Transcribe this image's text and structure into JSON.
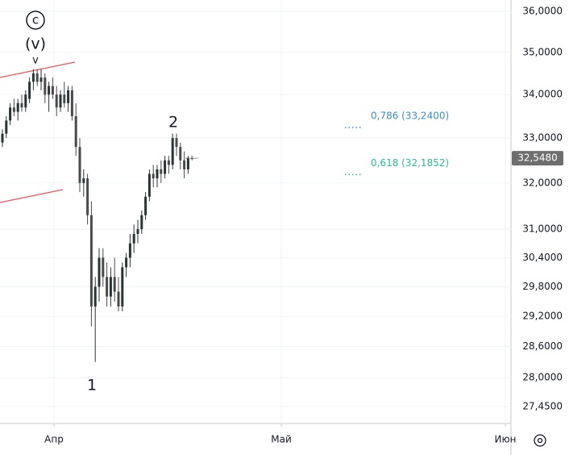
{
  "chart_data": {
    "type": "candlestick",
    "log_scale": true,
    "grid": true,
    "ylim": [
      27.13,
      36.28
    ],
    "yticks": [
      {
        "value": 36,
        "label": "36,0000"
      },
      {
        "value": 35,
        "label": "35,0000"
      },
      {
        "value": 34,
        "label": "34,0000"
      },
      {
        "value": 33,
        "label": "33,0000"
      },
      {
        "value": 32,
        "label": "32,0000"
      },
      {
        "value": 31,
        "label": "31,0000"
      },
      {
        "value": 30.4,
        "label": "30,4000"
      },
      {
        "value": 29.8,
        "label": "29,8000"
      },
      {
        "value": 29.2,
        "label": "29,2000"
      },
      {
        "value": 28.6,
        "label": "28,6000"
      },
      {
        "value": 28,
        "label": "28,0000"
      },
      {
        "value": 27.45,
        "label": "27,4500"
      }
    ],
    "x_labels": [
      "Апр",
      "Май",
      "Июн"
    ],
    "up_color": "#2a3434",
    "down_color": "#4a4a4a",
    "candles": [
      [
        32.9,
        33.2,
        32.8,
        33.1
      ],
      [
        33.1,
        33.5,
        33.0,
        33.4
      ],
      [
        33.4,
        33.8,
        33.3,
        33.7
      ],
      [
        33.7,
        33.9,
        33.5,
        33.6
      ],
      [
        33.6,
        33.9,
        33.4,
        33.8
      ],
      [
        33.8,
        34.0,
        33.6,
        33.7
      ],
      [
        33.7,
        34.1,
        33.6,
        34.0
      ],
      [
        33.9,
        34.4,
        33.8,
        34.3
      ],
      [
        34.3,
        34.6,
        34.1,
        34.5
      ],
      [
        34.5,
        34.6,
        34.2,
        34.3
      ],
      [
        34.3,
        34.6,
        34.1,
        34.4
      ],
      [
        34.4,
        34.5,
        33.8,
        34.0
      ],
      [
        34.0,
        34.3,
        33.6,
        34.2
      ],
      [
        34.2,
        34.4,
        33.9,
        34.0
      ],
      [
        34.0,
        34.2,
        33.5,
        33.7
      ],
      [
        33.7,
        34.1,
        33.6,
        34.0
      ],
      [
        34.0,
        34.3,
        33.7,
        33.8
      ],
      [
        33.8,
        34.2,
        33.6,
        34.1
      ],
      [
        34.1,
        34.2,
        33.4,
        33.5
      ],
      [
        33.5,
        33.8,
        32.6,
        32.8
      ],
      [
        32.8,
        33.0,
        31.8,
        32.0
      ],
      [
        32.0,
        32.3,
        31.7,
        32.1
      ],
      [
        32.1,
        32.2,
        31.1,
        31.3
      ],
      [
        31.3,
        31.6,
        29.0,
        29.4
      ],
      [
        29.4,
        30.0,
        28.3,
        29.8
      ],
      [
        29.8,
        30.6,
        29.5,
        30.4
      ],
      [
        30.4,
        30.6,
        29.8,
        30.0
      ],
      [
        30.0,
        30.3,
        29.4,
        29.6
      ],
      [
        29.6,
        30.2,
        29.4,
        30.0
      ],
      [
        30.0,
        30.4,
        29.5,
        29.7
      ],
      [
        29.7,
        30.0,
        29.3,
        29.4
      ],
      [
        29.4,
        30.3,
        29.3,
        30.2
      ],
      [
        30.2,
        30.5,
        30.0,
        30.4
      ],
      [
        30.4,
        30.9,
        30.2,
        30.7
      ],
      [
        30.7,
        31.1,
        30.5,
        30.9
      ],
      [
        30.9,
        31.2,
        30.7,
        31.0
      ],
      [
        31.0,
        31.4,
        30.9,
        31.3
      ],
      [
        31.3,
        31.8,
        31.2,
        31.7
      ],
      [
        31.7,
        32.3,
        31.6,
        32.2
      ],
      [
        32.2,
        32.4,
        31.9,
        32.1
      ],
      [
        32.1,
        32.4,
        31.9,
        32.3
      ],
      [
        32.3,
        32.5,
        32.0,
        32.2
      ],
      [
        32.2,
        32.6,
        32.1,
        32.5
      ],
      [
        32.5,
        32.6,
        32.2,
        32.4
      ],
      [
        32.4,
        33.1,
        32.3,
        33.0
      ],
      [
        33.0,
        33.1,
        32.6,
        32.8
      ],
      [
        32.8,
        32.9,
        32.3,
        32.5
      ],
      [
        32.5,
        32.7,
        32.1,
        32.3
      ],
      [
        32.3,
        32.6,
        32.2,
        32.55
      ],
      [
        32.55,
        32.6,
        32.5,
        32.548
      ]
    ],
    "last_price": {
      "value": 32.548,
      "label": "32,5480",
      "color": "#6e6e6e"
    },
    "fib_levels": [
      {
        "value": 33.24,
        "label": "0,786 (33,2400)",
        "color": "#3d8fc4"
      },
      {
        "value": 32.1852,
        "label": "0,618 (32,1852)",
        "color": "#2bbd94"
      }
    ],
    "wave_labels": {
      "c": "c",
      "v": "(v)",
      "arrow": "v",
      "one": "1",
      "two": "2"
    }
  }
}
